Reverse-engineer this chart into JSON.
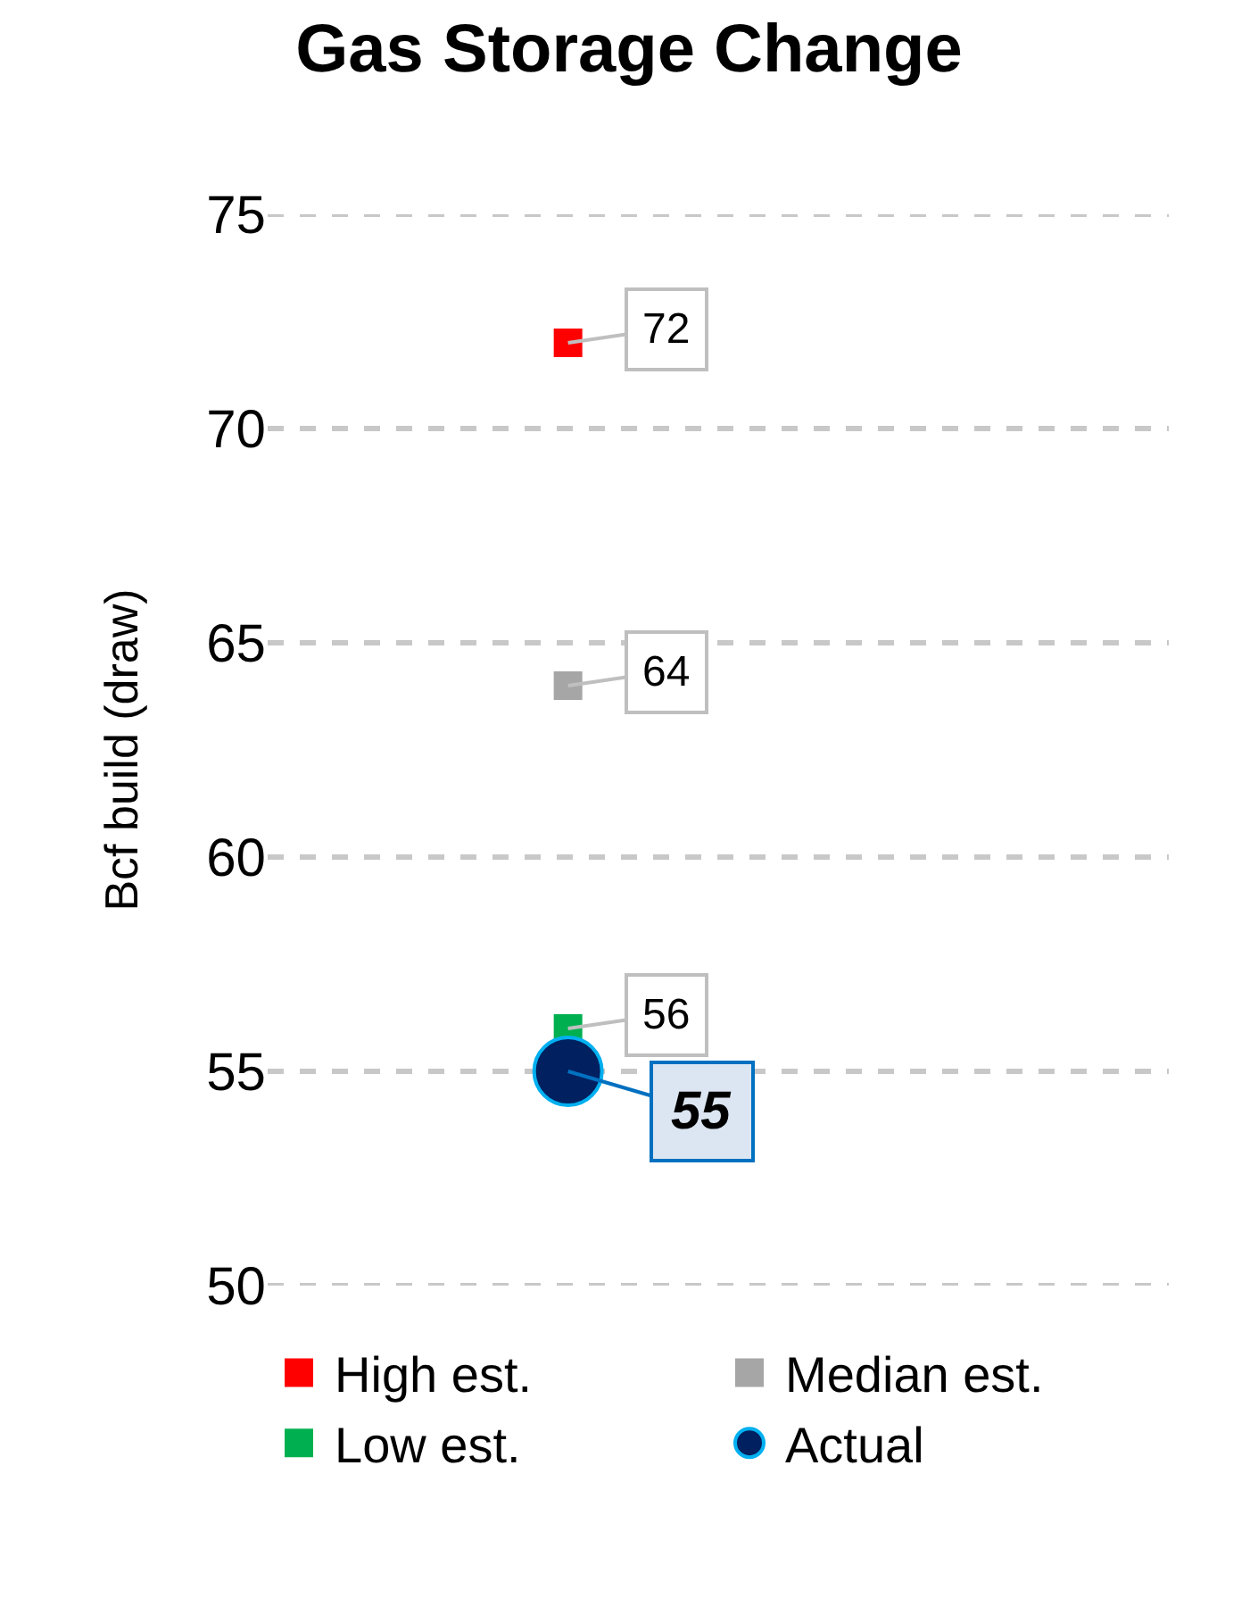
{
  "chart_data": {
    "type": "scatter",
    "title": "Gas Storage Change",
    "ylabel": "Bcf build (draw)",
    "categories": [
      null
    ],
    "series": [
      {
        "name": "High est.",
        "color": "#ff0000",
        "values": [
          72
        ],
        "marker": "square"
      },
      {
        "name": "Median est.",
        "color": "#a6a6a6",
        "values": [
          64
        ],
        "marker": "square"
      },
      {
        "name": "Low est.",
        "color": "#00b050",
        "values": [
          56
        ],
        "marker": "square"
      },
      {
        "name": "Actual",
        "color": "#002060",
        "values": [
          55
        ],
        "marker": "circle"
      }
    ],
    "ylim": [
      50,
      75
    ],
    "yticks": [
      50,
      55,
      60,
      65,
      70,
      75
    ],
    "grid": "y",
    "legend": "bottom",
    "data_labels": true
  }
}
